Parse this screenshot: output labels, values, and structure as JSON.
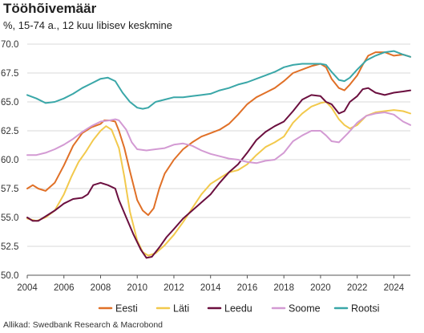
{
  "title": "Tööhõivemäär",
  "subtitle": "%, 15-74 a., 12 kuu libisev keskmine",
  "source": "Allikad: Swedbank Research & Macrobond",
  "chart_data": {
    "type": "line",
    "xlim": [
      2004,
      2024.9
    ],
    "ylim": [
      50,
      70
    ],
    "xticks": [
      2004,
      2006,
      2008,
      2010,
      2012,
      2014,
      2016,
      2018,
      2020,
      2022,
      2024
    ],
    "yticks": [
      50.0,
      52.5,
      55.0,
      57.5,
      60.0,
      62.5,
      65.0,
      67.5,
      70.0
    ],
    "grid": "horizontal",
    "legend": "bottom",
    "series": [
      {
        "name": "Eesti",
        "color": "#e07027",
        "points": [
          [
            2004.0,
            57.5
          ],
          [
            2004.3,
            57.8
          ],
          [
            2004.6,
            57.5
          ],
          [
            2005.0,
            57.3
          ],
          [
            2005.5,
            58.0
          ],
          [
            2006.0,
            59.5
          ],
          [
            2006.5,
            61.2
          ],
          [
            2007.0,
            62.3
          ],
          [
            2007.5,
            62.8
          ],
          [
            2008.0,
            63.1
          ],
          [
            2008.2,
            63.4
          ],
          [
            2008.5,
            63.4
          ],
          [
            2008.8,
            63.3
          ],
          [
            2009.0,
            62.5
          ],
          [
            2009.3,
            61.0
          ],
          [
            2009.6,
            59.0
          ],
          [
            2010.0,
            56.5
          ],
          [
            2010.3,
            55.6
          ],
          [
            2010.6,
            55.2
          ],
          [
            2010.9,
            55.8
          ],
          [
            2011.2,
            57.5
          ],
          [
            2011.5,
            58.8
          ],
          [
            2012.0,
            60.0
          ],
          [
            2012.5,
            60.9
          ],
          [
            2013.0,
            61.5
          ],
          [
            2013.5,
            62.0
          ],
          [
            2014.0,
            62.3
          ],
          [
            2014.5,
            62.6
          ],
          [
            2015.0,
            63.1
          ],
          [
            2015.5,
            63.9
          ],
          [
            2016.0,
            64.8
          ],
          [
            2016.5,
            65.4
          ],
          [
            2017.0,
            65.8
          ],
          [
            2017.5,
            66.2
          ],
          [
            2018.0,
            66.8
          ],
          [
            2018.5,
            67.5
          ],
          [
            2019.0,
            67.8
          ],
          [
            2019.5,
            68.1
          ],
          [
            2020.0,
            68.3
          ],
          [
            2020.3,
            68.0
          ],
          [
            2020.6,
            67.0
          ],
          [
            2021.0,
            66.2
          ],
          [
            2021.3,
            66.0
          ],
          [
            2021.6,
            66.5
          ],
          [
            2022.0,
            67.3
          ],
          [
            2022.3,
            68.2
          ],
          [
            2022.6,
            69.0
          ],
          [
            2023.0,
            69.3
          ],
          [
            2023.5,
            69.3
          ],
          [
            2024.0,
            69.0
          ],
          [
            2024.5,
            69.1
          ],
          [
            2024.9,
            68.9
          ]
        ]
      },
      {
        "name": "Läti",
        "color": "#f2c94c",
        "points": [
          [
            2004.0,
            54.9
          ],
          [
            2004.5,
            54.7
          ],
          [
            2005.0,
            55.0
          ],
          [
            2005.5,
            55.6
          ],
          [
            2006.0,
            57.0
          ],
          [
            2006.4,
            58.5
          ],
          [
            2006.8,
            59.8
          ],
          [
            2007.2,
            60.7
          ],
          [
            2007.6,
            61.7
          ],
          [
            2008.0,
            62.5
          ],
          [
            2008.3,
            62.9
          ],
          [
            2008.6,
            62.6
          ],
          [
            2009.0,
            61.0
          ],
          [
            2009.3,
            58.5
          ],
          [
            2009.6,
            55.5
          ],
          [
            2010.0,
            53.0
          ],
          [
            2010.3,
            52.0
          ],
          [
            2010.6,
            51.7
          ],
          [
            2011.0,
            51.9
          ],
          [
            2011.5,
            52.6
          ],
          [
            2012.0,
            53.5
          ],
          [
            2012.5,
            54.6
          ],
          [
            2013.0,
            55.8
          ],
          [
            2013.5,
            57.0
          ],
          [
            2014.0,
            57.9
          ],
          [
            2014.5,
            58.4
          ],
          [
            2015.0,
            58.9
          ],
          [
            2015.5,
            59.1
          ],
          [
            2016.0,
            59.6
          ],
          [
            2016.5,
            60.4
          ],
          [
            2017.0,
            61.1
          ],
          [
            2017.5,
            61.5
          ],
          [
            2018.0,
            62.0
          ],
          [
            2018.5,
            63.2
          ],
          [
            2019.0,
            64.0
          ],
          [
            2019.5,
            64.6
          ],
          [
            2020.0,
            64.9
          ],
          [
            2020.3,
            65.0
          ],
          [
            2020.6,
            64.5
          ],
          [
            2021.0,
            63.5
          ],
          [
            2021.3,
            63.0
          ],
          [
            2021.6,
            62.7
          ],
          [
            2022.0,
            63.0
          ],
          [
            2022.5,
            63.8
          ],
          [
            2023.0,
            64.1
          ],
          [
            2023.5,
            64.2
          ],
          [
            2024.0,
            64.3
          ],
          [
            2024.5,
            64.2
          ],
          [
            2024.9,
            64.0
          ]
        ]
      },
      {
        "name": "Leedu",
        "color": "#6b0f3f",
        "points": [
          [
            2004.0,
            55.0
          ],
          [
            2004.3,
            54.7
          ],
          [
            2004.6,
            54.7
          ],
          [
            2005.0,
            55.1
          ],
          [
            2005.5,
            55.6
          ],
          [
            2006.0,
            56.2
          ],
          [
            2006.5,
            56.6
          ],
          [
            2007.0,
            56.7
          ],
          [
            2007.3,
            57.0
          ],
          [
            2007.6,
            57.8
          ],
          [
            2008.0,
            58.0
          ],
          [
            2008.4,
            57.8
          ],
          [
            2008.8,
            57.5
          ],
          [
            2009.0,
            56.5
          ],
          [
            2009.4,
            55.0
          ],
          [
            2009.8,
            53.5
          ],
          [
            2010.2,
            52.2
          ],
          [
            2010.5,
            51.5
          ],
          [
            2010.8,
            51.6
          ],
          [
            2011.2,
            52.4
          ],
          [
            2011.6,
            53.3
          ],
          [
            2012.0,
            54.0
          ],
          [
            2012.5,
            54.9
          ],
          [
            2013.0,
            55.6
          ],
          [
            2013.5,
            56.3
          ],
          [
            2014.0,
            57.0
          ],
          [
            2014.5,
            58.0
          ],
          [
            2015.0,
            58.9
          ],
          [
            2015.5,
            59.6
          ],
          [
            2016.0,
            60.6
          ],
          [
            2016.5,
            61.7
          ],
          [
            2017.0,
            62.4
          ],
          [
            2017.5,
            62.9
          ],
          [
            2018.0,
            63.3
          ],
          [
            2018.5,
            64.2
          ],
          [
            2019.0,
            65.2
          ],
          [
            2019.5,
            65.6
          ],
          [
            2020.0,
            65.5
          ],
          [
            2020.3,
            65.0
          ],
          [
            2020.6,
            64.8
          ],
          [
            2021.0,
            64.0
          ],
          [
            2021.3,
            64.2
          ],
          [
            2021.6,
            65.0
          ],
          [
            2022.0,
            65.5
          ],
          [
            2022.3,
            66.1
          ],
          [
            2022.6,
            66.2
          ],
          [
            2023.0,
            65.8
          ],
          [
            2023.5,
            65.6
          ],
          [
            2024.0,
            65.8
          ],
          [
            2024.5,
            65.9
          ],
          [
            2024.9,
            66.0
          ]
        ]
      },
      {
        "name": "Soome",
        "color": "#d39ad3",
        "points": [
          [
            2004.0,
            60.4
          ],
          [
            2004.5,
            60.4
          ],
          [
            2005.0,
            60.6
          ],
          [
            2005.5,
            60.9
          ],
          [
            2006.0,
            61.3
          ],
          [
            2006.5,
            61.8
          ],
          [
            2007.0,
            62.4
          ],
          [
            2007.5,
            62.9
          ],
          [
            2008.0,
            63.3
          ],
          [
            2008.5,
            63.4
          ],
          [
            2008.8,
            63.5
          ],
          [
            2009.0,
            63.4
          ],
          [
            2009.4,
            62.6
          ],
          [
            2009.7,
            61.5
          ],
          [
            2010.0,
            60.9
          ],
          [
            2010.5,
            60.8
          ],
          [
            2011.0,
            60.9
          ],
          [
            2011.5,
            61.0
          ],
          [
            2012.0,
            61.3
          ],
          [
            2012.5,
            61.4
          ],
          [
            2013.0,
            61.2
          ],
          [
            2013.5,
            60.8
          ],
          [
            2014.0,
            60.5
          ],
          [
            2014.5,
            60.3
          ],
          [
            2015.0,
            60.1
          ],
          [
            2015.5,
            60.0
          ],
          [
            2016.0,
            59.8
          ],
          [
            2016.5,
            59.7
          ],
          [
            2017.0,
            59.9
          ],
          [
            2017.5,
            60.0
          ],
          [
            2018.0,
            60.6
          ],
          [
            2018.5,
            61.6
          ],
          [
            2019.0,
            62.1
          ],
          [
            2019.5,
            62.5
          ],
          [
            2020.0,
            62.5
          ],
          [
            2020.3,
            62.1
          ],
          [
            2020.6,
            61.6
          ],
          [
            2021.0,
            61.5
          ],
          [
            2021.5,
            62.3
          ],
          [
            2022.0,
            63.2
          ],
          [
            2022.5,
            63.8
          ],
          [
            2023.0,
            64.0
          ],
          [
            2023.5,
            64.1
          ],
          [
            2024.0,
            63.9
          ],
          [
            2024.5,
            63.3
          ],
          [
            2024.9,
            63.0
          ]
        ]
      },
      {
        "name": "Rootsi",
        "color": "#3aa7a8",
        "points": [
          [
            2004.0,
            65.6
          ],
          [
            2004.5,
            65.3
          ],
          [
            2005.0,
            64.9
          ],
          [
            2005.5,
            65.0
          ],
          [
            2006.0,
            65.3
          ],
          [
            2006.5,
            65.7
          ],
          [
            2007.0,
            66.2
          ],
          [
            2007.5,
            66.6
          ],
          [
            2008.0,
            67.0
          ],
          [
            2008.4,
            67.1
          ],
          [
            2008.8,
            66.8
          ],
          [
            2009.2,
            65.8
          ],
          [
            2009.6,
            65.0
          ],
          [
            2010.0,
            64.5
          ],
          [
            2010.3,
            64.4
          ],
          [
            2010.6,
            64.5
          ],
          [
            2011.0,
            65.0
          ],
          [
            2011.5,
            65.2
          ],
          [
            2012.0,
            65.4
          ],
          [
            2012.5,
            65.4
          ],
          [
            2013.0,
            65.5
          ],
          [
            2013.5,
            65.6
          ],
          [
            2014.0,
            65.7
          ],
          [
            2014.5,
            66.0
          ],
          [
            2015.0,
            66.2
          ],
          [
            2015.5,
            66.5
          ],
          [
            2016.0,
            66.7
          ],
          [
            2016.5,
            67.0
          ],
          [
            2017.0,
            67.3
          ],
          [
            2017.5,
            67.6
          ],
          [
            2018.0,
            68.0
          ],
          [
            2018.5,
            68.2
          ],
          [
            2019.0,
            68.3
          ],
          [
            2019.5,
            68.3
          ],
          [
            2020.0,
            68.3
          ],
          [
            2020.3,
            68.2
          ],
          [
            2020.6,
            67.6
          ],
          [
            2021.0,
            66.9
          ],
          [
            2021.3,
            66.8
          ],
          [
            2021.6,
            67.1
          ],
          [
            2022.0,
            67.8
          ],
          [
            2022.5,
            68.6
          ],
          [
            2023.0,
            69.0
          ],
          [
            2023.5,
            69.3
          ],
          [
            2024.0,
            69.4
          ],
          [
            2024.5,
            69.1
          ],
          [
            2024.9,
            68.9
          ]
        ]
      }
    ]
  }
}
